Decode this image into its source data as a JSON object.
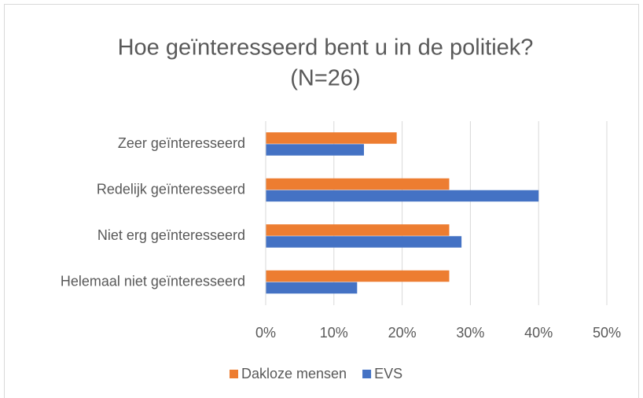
{
  "chart_data": {
    "type": "bar",
    "orientation": "horizontal",
    "title": [
      "Hoe geïnteresseerd bent u in de politiek?",
      "(N=26)"
    ],
    "categories": [
      "Zeer geïnteresseerd",
      "Redelijk geïnteresseerd",
      "Niet erg geïnteresseerd",
      "Helemaal niet geïnteresseerd"
    ],
    "series": [
      {
        "name": "Dakloze mensen",
        "color": "#ed7d31",
        "values": [
          19.2,
          26.9,
          26.9,
          26.9
        ]
      },
      {
        "name": "EVS",
        "color": "#4472c4",
        "values": [
          14.4,
          40,
          28.7,
          13.4
        ]
      }
    ],
    "xlim": [
      0,
      50
    ],
    "xticks": [
      {
        "value": 0,
        "label": "0%"
      },
      {
        "value": 10,
        "label": "10%"
      },
      {
        "value": 20,
        "label": "20%"
      },
      {
        "value": 30,
        "label": "30%"
      },
      {
        "value": 40,
        "label": "40%"
      },
      {
        "value": 50,
        "label": "50%"
      }
    ],
    "grid": true,
    "legend": "bottom"
  }
}
